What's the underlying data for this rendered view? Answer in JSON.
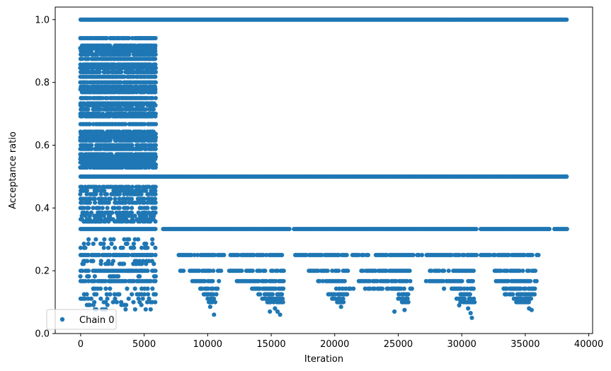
{
  "chart_data": {
    "type": "scatter",
    "xlabel": "Iteration",
    "ylabel": "Acceptance ratio",
    "xlim": [
      -2000,
      40300
    ],
    "ylim": [
      0.0,
      1.04
    ],
    "x_ticks": [
      0,
      5000,
      10000,
      15000,
      20000,
      25000,
      30000,
      35000,
      40000
    ],
    "y_ticks": [
      0.0,
      0.2,
      0.4,
      0.6,
      0.8,
      1.0
    ],
    "x_tick_labels": [
      "0",
      "5000",
      "10000",
      "15000",
      "20000",
      "25000",
      "30000",
      "35000",
      "40000"
    ],
    "y_tick_labels": [
      "0.0",
      "0.2",
      "0.4",
      "0.6",
      "0.8",
      "1.0"
    ],
    "grid": false,
    "legend_position": "lower-left",
    "color": "#1f77b4",
    "series": [
      {
        "name": "Chain 0",
        "iteration_range": [
          0,
          38300
        ],
        "bands": [
          {
            "y": 1.0,
            "x_ranges": [
              [
                0,
                38300
              ]
            ]
          },
          {
            "y": 0.5,
            "x_ranges": [
              [
                0,
                38300
              ]
            ]
          },
          {
            "y": 0.333,
            "x_ranges": [
              [
                0,
                6000
              ],
              [
                6500,
                16500
              ],
              [
                16800,
                31200
              ],
              [
                31500,
                37000
              ],
              [
                37300,
                38300
              ]
            ]
          },
          {
            "y": 0.25,
            "x_ranges": [
              [
                0,
                6000
              ],
              [
                7600,
                11400
              ],
              [
                11800,
                16000
              ],
              [
                16900,
                21000
              ],
              [
                21400,
                26200
              ],
              [
                26500,
                31200
              ],
              [
                31500,
                36100
              ]
            ]
          },
          {
            "y": 0.2,
            "x_ranges": [
              [
                0,
                6000
              ],
              [
                7600,
                8200
              ],
              [
                8600,
                11200
              ],
              [
                11700,
                16000
              ],
              [
                17600,
                21100
              ],
              [
                22100,
                26000
              ],
              [
                27500,
                31000
              ],
              [
                32600,
                35900
              ]
            ]
          },
          {
            "y": 0.167,
            "x_ranges": [
              [
                0,
                6000
              ],
              [
                8800,
                11000
              ],
              [
                12300,
                16000
              ],
              [
                18700,
                20800
              ],
              [
                21900,
                26000
              ],
              [
                27200,
                31000
              ],
              [
                32700,
                35900
              ]
            ]
          },
          {
            "y": 0.143,
            "x_ranges": [
              [
                9300,
                11000
              ],
              [
                13500,
                16000
              ],
              [
                20000,
                21500
              ],
              [
                22400,
                26100
              ],
              [
                28600,
                31200
              ],
              [
                33300,
                35800
              ]
            ]
          },
          {
            "y": 0.125,
            "x_ranges": [
              [
                9700,
                10700
              ],
              [
                14000,
                15900
              ],
              [
                19500,
                21000
              ],
              [
                24800,
                25900
              ],
              [
                29300,
                30900
              ],
              [
                33400,
                35800
              ]
            ]
          },
          {
            "y": 0.111,
            "x_ranges": [
              [
                10000,
                10700
              ],
              [
                14300,
                15900
              ],
              [
                19800,
                20700
              ],
              [
                25000,
                25900
              ],
              [
                29600,
                31000
              ],
              [
                34100,
                35500
              ]
            ]
          },
          {
            "y": 0.1,
            "x_ranges": [
              [
                10100,
                10600
              ],
              [
                14700,
                16000
              ],
              [
                20200,
                20800
              ],
              [
                25300,
                25900
              ],
              [
                29900,
                31100
              ],
              [
                34300,
                35400
              ]
            ]
          }
        ],
        "early_levels": [
          0.941,
          0.917,
          0.909,
          0.9,
          0.889,
          0.875,
          0.857,
          0.846,
          0.833,
          0.818,
          0.8,
          0.786,
          0.778,
          0.769,
          0.75,
          0.733,
          0.727,
          0.714,
          0.7,
          0.692,
          0.667,
          0.643,
          0.636,
          0.625,
          0.615,
          0.6,
          0.588,
          0.571,
          0.563,
          0.556,
          0.545,
          0.538,
          0.529,
          0.467,
          0.455,
          0.444,
          0.429,
          0.417,
          0.4,
          0.385,
          0.375,
          0.364,
          0.357,
          0.3,
          0.286,
          0.273,
          0.25,
          0.231,
          0.222,
          0.2,
          0.182,
          0.167,
          0.143,
          0.125,
          0.111,
          0.1,
          0.091,
          0.077
        ],
        "early_range": [
          0,
          6000
        ],
        "sparse_low_points": [
          [
            15700,
            0.06
          ],
          [
            15500,
            0.07
          ],
          [
            30800,
            0.05
          ],
          [
            30700,
            0.065
          ],
          [
            10500,
            0.06
          ],
          [
            25500,
            0.075
          ],
          [
            24700,
            0.07
          ],
          [
            35300,
            0.08
          ],
          [
            35500,
            0.075
          ],
          [
            20500,
            0.085
          ],
          [
            15300,
            0.08
          ],
          [
            30500,
            0.08
          ],
          [
            14900,
            0.07
          ],
          [
            29800,
            0.09
          ],
          [
            10200,
            0.085
          ]
        ]
      }
    ]
  },
  "legend": {
    "label": "Chain 0"
  }
}
